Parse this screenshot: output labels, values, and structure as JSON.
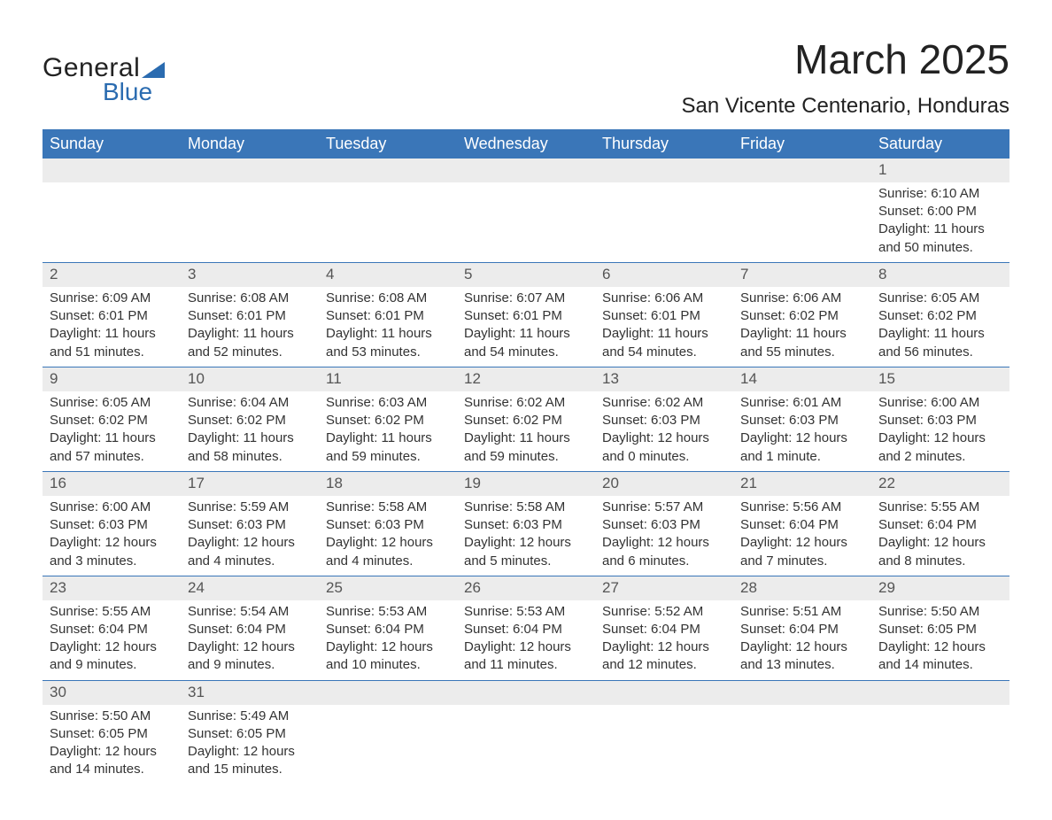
{
  "brand": {
    "general": "General",
    "blue": "Blue"
  },
  "title": "March 2025",
  "location": "San Vicente Centenario, Honduras",
  "columns": [
    "Sunday",
    "Monday",
    "Tuesday",
    "Wednesday",
    "Thursday",
    "Friday",
    "Saturday"
  ],
  "colors": {
    "header_bg": "#3a76b8",
    "header_text": "#ffffff",
    "daynum_bg": "#ececec",
    "border": "#3a76b8",
    "logo_accent": "#2a6bb0",
    "text": "#333333"
  },
  "weeks": [
    [
      null,
      null,
      null,
      null,
      null,
      null,
      {
        "n": "1",
        "sr": "Sunrise: 6:10 AM",
        "ss": "Sunset: 6:00 PM",
        "d1": "Daylight: 11 hours",
        "d2": "and 50 minutes."
      }
    ],
    [
      {
        "n": "2",
        "sr": "Sunrise: 6:09 AM",
        "ss": "Sunset: 6:01 PM",
        "d1": "Daylight: 11 hours",
        "d2": "and 51 minutes."
      },
      {
        "n": "3",
        "sr": "Sunrise: 6:08 AM",
        "ss": "Sunset: 6:01 PM",
        "d1": "Daylight: 11 hours",
        "d2": "and 52 minutes."
      },
      {
        "n": "4",
        "sr": "Sunrise: 6:08 AM",
        "ss": "Sunset: 6:01 PM",
        "d1": "Daylight: 11 hours",
        "d2": "and 53 minutes."
      },
      {
        "n": "5",
        "sr": "Sunrise: 6:07 AM",
        "ss": "Sunset: 6:01 PM",
        "d1": "Daylight: 11 hours",
        "d2": "and 54 minutes."
      },
      {
        "n": "6",
        "sr": "Sunrise: 6:06 AM",
        "ss": "Sunset: 6:01 PM",
        "d1": "Daylight: 11 hours",
        "d2": "and 54 minutes."
      },
      {
        "n": "7",
        "sr": "Sunrise: 6:06 AM",
        "ss": "Sunset: 6:02 PM",
        "d1": "Daylight: 11 hours",
        "d2": "and 55 minutes."
      },
      {
        "n": "8",
        "sr": "Sunrise: 6:05 AM",
        "ss": "Sunset: 6:02 PM",
        "d1": "Daylight: 11 hours",
        "d2": "and 56 minutes."
      }
    ],
    [
      {
        "n": "9",
        "sr": "Sunrise: 6:05 AM",
        "ss": "Sunset: 6:02 PM",
        "d1": "Daylight: 11 hours",
        "d2": "and 57 minutes."
      },
      {
        "n": "10",
        "sr": "Sunrise: 6:04 AM",
        "ss": "Sunset: 6:02 PM",
        "d1": "Daylight: 11 hours",
        "d2": "and 58 minutes."
      },
      {
        "n": "11",
        "sr": "Sunrise: 6:03 AM",
        "ss": "Sunset: 6:02 PM",
        "d1": "Daylight: 11 hours",
        "d2": "and 59 minutes."
      },
      {
        "n": "12",
        "sr": "Sunrise: 6:02 AM",
        "ss": "Sunset: 6:02 PM",
        "d1": "Daylight: 11 hours",
        "d2": "and 59 minutes."
      },
      {
        "n": "13",
        "sr": "Sunrise: 6:02 AM",
        "ss": "Sunset: 6:03 PM",
        "d1": "Daylight: 12 hours",
        "d2": "and 0 minutes."
      },
      {
        "n": "14",
        "sr": "Sunrise: 6:01 AM",
        "ss": "Sunset: 6:03 PM",
        "d1": "Daylight: 12 hours",
        "d2": "and 1 minute."
      },
      {
        "n": "15",
        "sr": "Sunrise: 6:00 AM",
        "ss": "Sunset: 6:03 PM",
        "d1": "Daylight: 12 hours",
        "d2": "and 2 minutes."
      }
    ],
    [
      {
        "n": "16",
        "sr": "Sunrise: 6:00 AM",
        "ss": "Sunset: 6:03 PM",
        "d1": "Daylight: 12 hours",
        "d2": "and 3 minutes."
      },
      {
        "n": "17",
        "sr": "Sunrise: 5:59 AM",
        "ss": "Sunset: 6:03 PM",
        "d1": "Daylight: 12 hours",
        "d2": "and 4 minutes."
      },
      {
        "n": "18",
        "sr": "Sunrise: 5:58 AM",
        "ss": "Sunset: 6:03 PM",
        "d1": "Daylight: 12 hours",
        "d2": "and 4 minutes."
      },
      {
        "n": "19",
        "sr": "Sunrise: 5:58 AM",
        "ss": "Sunset: 6:03 PM",
        "d1": "Daylight: 12 hours",
        "d2": "and 5 minutes."
      },
      {
        "n": "20",
        "sr": "Sunrise: 5:57 AM",
        "ss": "Sunset: 6:03 PM",
        "d1": "Daylight: 12 hours",
        "d2": "and 6 minutes."
      },
      {
        "n": "21",
        "sr": "Sunrise: 5:56 AM",
        "ss": "Sunset: 6:04 PM",
        "d1": "Daylight: 12 hours",
        "d2": "and 7 minutes."
      },
      {
        "n": "22",
        "sr": "Sunrise: 5:55 AM",
        "ss": "Sunset: 6:04 PM",
        "d1": "Daylight: 12 hours",
        "d2": "and 8 minutes."
      }
    ],
    [
      {
        "n": "23",
        "sr": "Sunrise: 5:55 AM",
        "ss": "Sunset: 6:04 PM",
        "d1": "Daylight: 12 hours",
        "d2": "and 9 minutes."
      },
      {
        "n": "24",
        "sr": "Sunrise: 5:54 AM",
        "ss": "Sunset: 6:04 PM",
        "d1": "Daylight: 12 hours",
        "d2": "and 9 minutes."
      },
      {
        "n": "25",
        "sr": "Sunrise: 5:53 AM",
        "ss": "Sunset: 6:04 PM",
        "d1": "Daylight: 12 hours",
        "d2": "and 10 minutes."
      },
      {
        "n": "26",
        "sr": "Sunrise: 5:53 AM",
        "ss": "Sunset: 6:04 PM",
        "d1": "Daylight: 12 hours",
        "d2": "and 11 minutes."
      },
      {
        "n": "27",
        "sr": "Sunrise: 5:52 AM",
        "ss": "Sunset: 6:04 PM",
        "d1": "Daylight: 12 hours",
        "d2": "and 12 minutes."
      },
      {
        "n": "28",
        "sr": "Sunrise: 5:51 AM",
        "ss": "Sunset: 6:04 PM",
        "d1": "Daylight: 12 hours",
        "d2": "and 13 minutes."
      },
      {
        "n": "29",
        "sr": "Sunrise: 5:50 AM",
        "ss": "Sunset: 6:05 PM",
        "d1": "Daylight: 12 hours",
        "d2": "and 14 minutes."
      }
    ],
    [
      {
        "n": "30",
        "sr": "Sunrise: 5:50 AM",
        "ss": "Sunset: 6:05 PM",
        "d1": "Daylight: 12 hours",
        "d2": "and 14 minutes."
      },
      {
        "n": "31",
        "sr": "Sunrise: 5:49 AM",
        "ss": "Sunset: 6:05 PM",
        "d1": "Daylight: 12 hours",
        "d2": "and 15 minutes."
      },
      null,
      null,
      null,
      null,
      null
    ]
  ]
}
